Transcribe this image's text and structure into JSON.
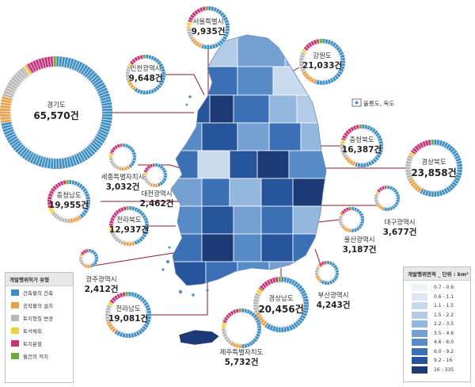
{
  "regions": [
    {
      "id": "seoul",
      "name": "서울특별시",
      "count": "9,935건",
      "mix": [
        55,
        10,
        10,
        5,
        18,
        2
      ]
    },
    {
      "id": "incheon",
      "name": "인천광역시",
      "count": "9,648건",
      "mix": [
        60,
        10,
        12,
        3,
        13,
        2
      ]
    },
    {
      "id": "gangwon",
      "name": "강원도",
      "count": "21,033건",
      "mix": [
        55,
        12,
        15,
        3,
        12,
        3
      ]
    },
    {
      "id": "gyeonggi",
      "name": "경기도",
      "count": "65,570건",
      "mix": [
        72,
        8,
        10,
        1,
        8,
        1
      ]
    },
    {
      "id": "chungbuk",
      "name": "충청북도",
      "count": "16,387건",
      "mix": [
        55,
        10,
        12,
        3,
        18,
        2
      ]
    },
    {
      "id": "gyeongbuk",
      "name": "경상북도",
      "count": "23,858건",
      "mix": [
        58,
        10,
        15,
        2,
        13,
        2
      ]
    },
    {
      "id": "sejong",
      "name": "세종특별자치시",
      "count": "3,032건",
      "mix": [
        40,
        15,
        20,
        5,
        18,
        2
      ]
    },
    {
      "id": "daejeon",
      "name": "대전광역시",
      "count": "2,462건",
      "mix": [
        45,
        12,
        18,
        5,
        18,
        2
      ]
    },
    {
      "id": "chungnam",
      "name": "충청남도",
      "count": "19,955건",
      "mix": [
        40,
        10,
        15,
        5,
        28,
        2
      ]
    },
    {
      "id": "jeonbuk",
      "name": "전라북도",
      "count": "12,937건",
      "mix": [
        45,
        10,
        15,
        5,
        23,
        2
      ]
    },
    {
      "id": "daegu",
      "name": "대구광역시",
      "count": "3,677건",
      "mix": [
        55,
        12,
        15,
        3,
        13,
        2
      ]
    },
    {
      "id": "ulsan",
      "name": "울산광역시",
      "count": "3,187건",
      "mix": [
        50,
        15,
        15,
        3,
        15,
        2
      ]
    },
    {
      "id": "gwangju",
      "name": "광주광역시",
      "count": "2,412건",
      "mix": [
        45,
        15,
        18,
        5,
        15,
        2
      ]
    },
    {
      "id": "busan",
      "name": "부산광역시",
      "count": "4,243건",
      "mix": [
        60,
        12,
        12,
        3,
        11,
        2
      ]
    },
    {
      "id": "jeonnam",
      "name": "전라남도",
      "count": "19,081건",
      "mix": [
        60,
        10,
        12,
        3,
        13,
        2
      ]
    },
    {
      "id": "gyeongnam",
      "name": "경상남도",
      "count": "20,456건",
      "mix": [
        60,
        10,
        12,
        3,
        13,
        2
      ]
    },
    {
      "id": "jeju",
      "name": "제주특별자치도",
      "count": "5,732건",
      "mix": [
        50,
        10,
        15,
        5,
        18,
        2
      ]
    }
  ],
  "islands_label": "울릉도, 독도",
  "type_legend": {
    "title": "개발행위허가 유형",
    "items": [
      {
        "label": "건축물의 건축",
        "color": "#3f8fc4"
      },
      {
        "label": "공작물의 설치",
        "color": "#e9a24b"
      },
      {
        "label": "토지형질 변경",
        "color": "#b8b8b8"
      },
      {
        "label": "토석채취",
        "color": "#f0d23c"
      },
      {
        "label": "토지분할",
        "color": "#c8337a"
      },
      {
        "label": "물건의 적치",
        "color": "#6aaa3a"
      }
    ]
  },
  "area_legend": {
    "title": "개발행위면적 _ 단위 : km²",
    "items": [
      {
        "label": "0.7 - 0.6",
        "color": "#eef3fa"
      },
      {
        "label": "0.6 - 1.1",
        "color": "#dde8f4"
      },
      {
        "label": "1.1 - 1.5",
        "color": "#c8daee"
      },
      {
        "label": "1.5 - 2.2",
        "color": "#b2cbe7"
      },
      {
        "label": "2.2 - 3.5",
        "color": "#93b7dd"
      },
      {
        "label": "3.5 - 4.6",
        "color": "#74a1d2"
      },
      {
        "label": "4.6 - 6.0",
        "color": "#568bc5"
      },
      {
        "label": "6.0 - 9.2",
        "color": "#3b70b4"
      },
      {
        "label": "9.2 - 16",
        "color": "#27559c"
      },
      {
        "label": "16 - 335",
        "color": "#1c3a76"
      }
    ]
  }
}
